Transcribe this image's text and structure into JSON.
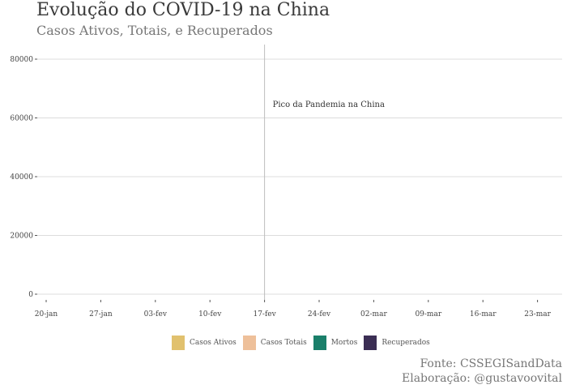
{
  "chart_data": {
    "type": "area",
    "title": "Evolução do COVID-19 na China",
    "subtitle": "Casos Ativos, Totais, e Recuperados",
    "xlabel": "",
    "ylabel": "",
    "x_ticks": [
      "20-jan",
      "27-jan",
      "03-fev",
      "10-fev",
      "17-fev",
      "24-fev",
      "02-mar",
      "09-mar",
      "16-mar",
      "23-mar"
    ],
    "y_ticks": [
      0,
      20000,
      40000,
      60000,
      80000
    ],
    "y_tick_labels": [
      "0",
      "20000",
      "40000",
      "60000",
      "80000"
    ],
    "ylim": [
      0,
      80000
    ],
    "grid": true,
    "legend_position": "bottom",
    "series": [
      {
        "name": "Casos Ativos",
        "color": "#E1C16E",
        "values": []
      },
      {
        "name": "Casos Totais",
        "color": "#EEC09A",
        "values": []
      },
      {
        "name": "Mortos",
        "color": "#1A7F6A",
        "values": []
      },
      {
        "name": "Recuperados",
        "color": "#3B2E54",
        "values": []
      }
    ],
    "annotation": {
      "text": "Pico da Pandemia na China",
      "x": "17-fev"
    },
    "caption_lines": [
      "Fonte: CSSEGISandData",
      "Elaboração: @gustavoovital"
    ]
  }
}
